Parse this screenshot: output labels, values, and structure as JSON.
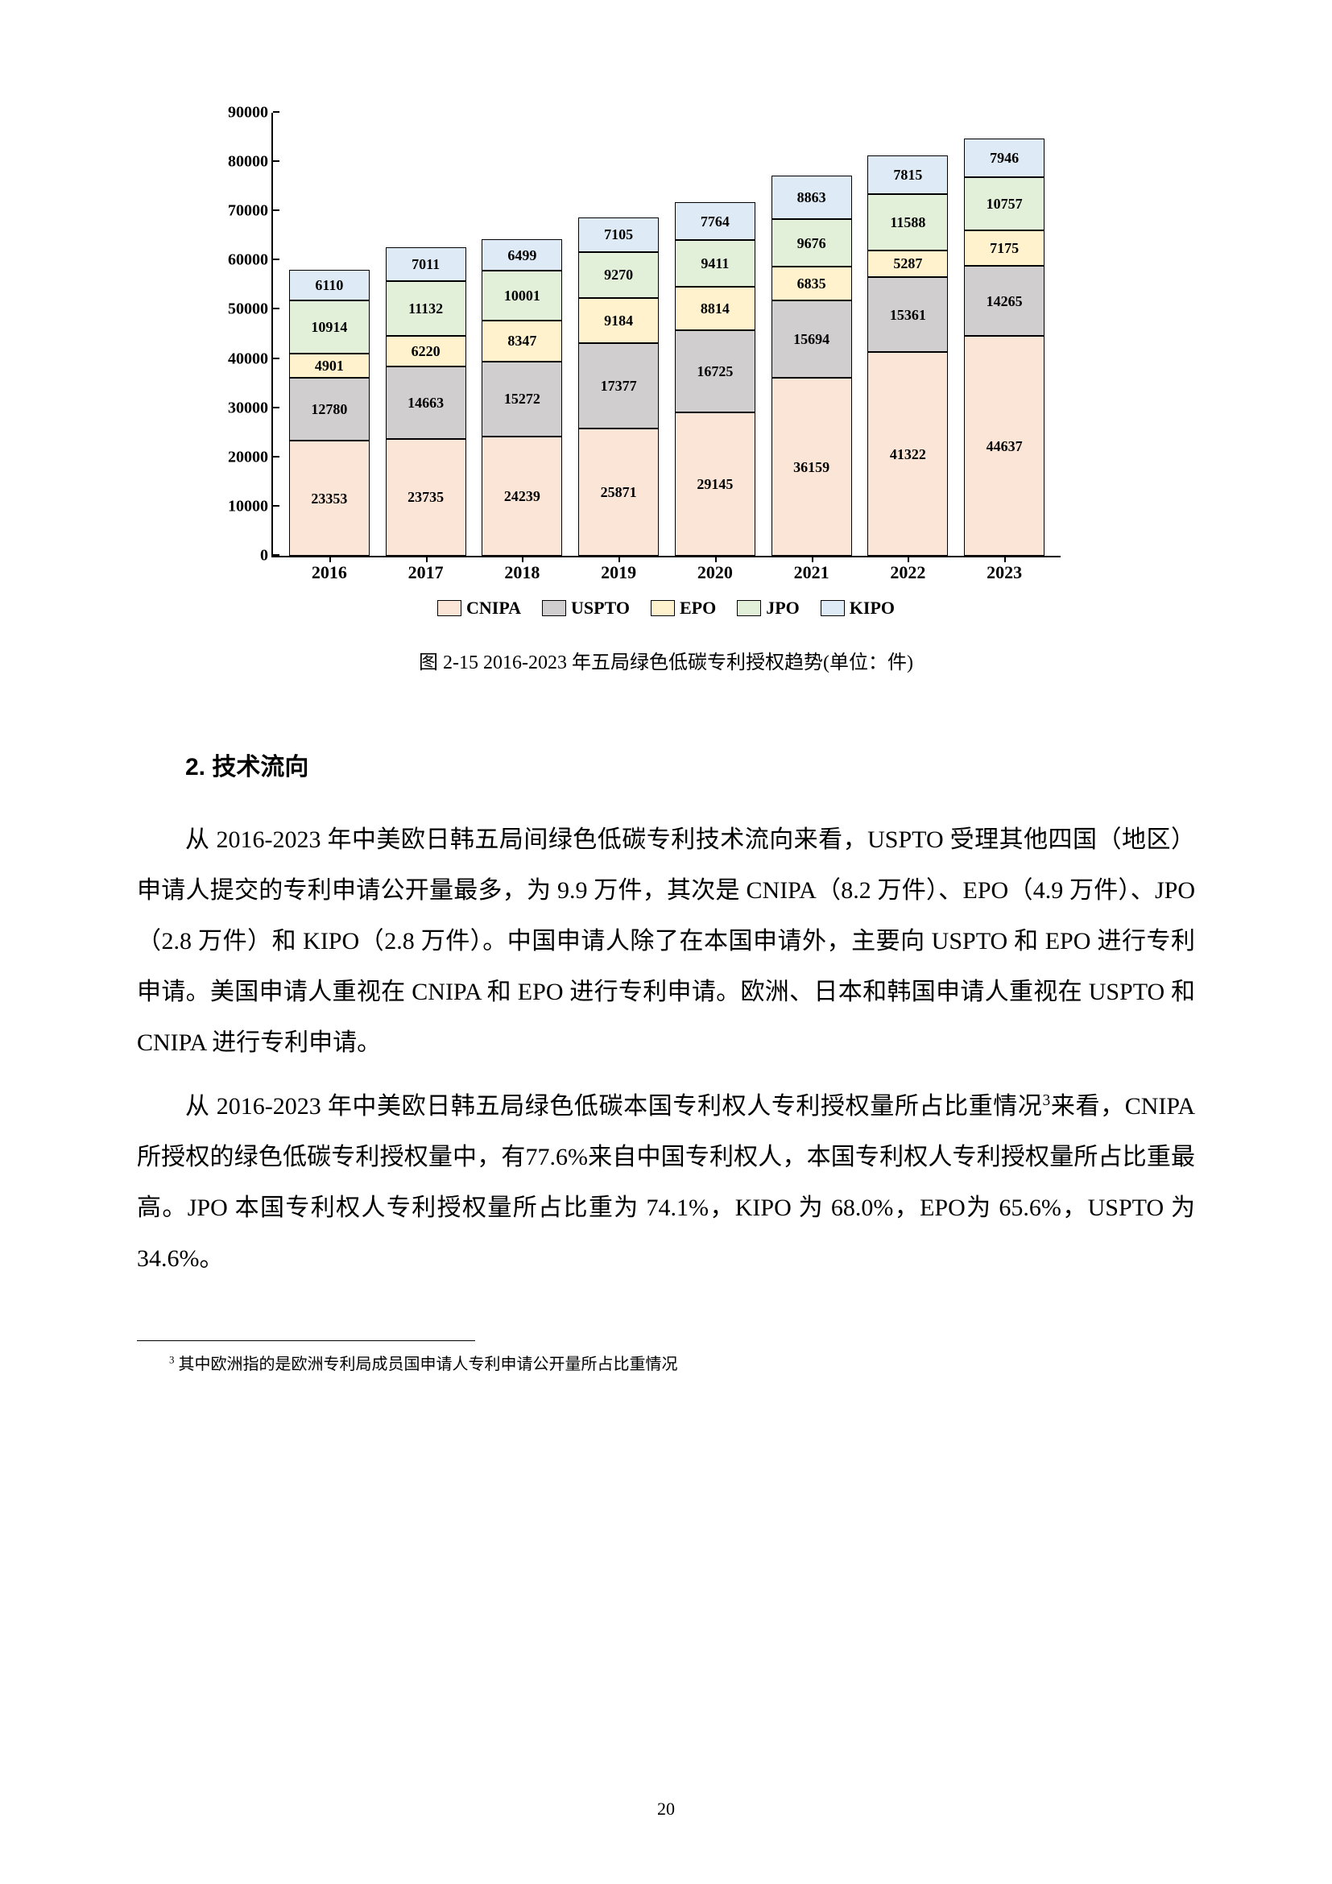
{
  "chart": {
    "type": "stacked-bar",
    "ylim": [
      0,
      90000
    ],
    "ytick_step": 10000,
    "background_color": "#ffffff",
    "axis_color": "#000000",
    "label_fontsize": 20,
    "categories": [
      "2016",
      "2017",
      "2018",
      "2019",
      "2020",
      "2021",
      "2022",
      "2023"
    ],
    "series": [
      {
        "key": "CNIPA",
        "label": "CNIPA",
        "color": "#fbe5d6"
      },
      {
        "key": "USPTO",
        "label": "USPTO",
        "color": "#d0cece"
      },
      {
        "key": "EPO",
        "label": "EPO",
        "color": "#fff2cc"
      },
      {
        "key": "JPO",
        "label": "JPO",
        "color": "#e2f0d9"
      },
      {
        "key": "KIPO",
        "label": "KIPO",
        "color": "#deebf7"
      }
    ],
    "values": {
      "2016": {
        "CNIPA": 23353,
        "USPTO": 12780,
        "EPO": 4901,
        "JPO": 10914,
        "KIPO": 6110
      },
      "2017": {
        "CNIPA": 23735,
        "USPTO": 14663,
        "EPO": 6220,
        "JPO": 11132,
        "KIPO": 7011
      },
      "2018": {
        "CNIPA": 24239,
        "USPTO": 15272,
        "EPO": 8347,
        "JPO": 10001,
        "KIPO": 6499
      },
      "2019": {
        "CNIPA": 25871,
        "USPTO": 17377,
        "EPO": 9184,
        "JPO": 9270,
        "KIPO": 7105
      },
      "2020": {
        "CNIPA": 29145,
        "USPTO": 16725,
        "EPO": 8814,
        "JPO": 9411,
        "KIPO": 7764
      },
      "2021": {
        "CNIPA": 36159,
        "USPTO": 15694,
        "EPO": 6835,
        "JPO": 9676,
        "KIPO": 8863
      },
      "2022": {
        "CNIPA": 41322,
        "USPTO": 15361,
        "EPO": 5287,
        "JPO": 11588,
        "KIPO": 7815
      },
      "2023": {
        "CNIPA": 44637,
        "USPTO": 14265,
        "EPO": 7175,
        "JPO": 10757,
        "KIPO": 7946
      }
    }
  },
  "caption": "图 2-15 2016-2023 年五局绿色低碳专利授权趋势(单位：件)",
  "section_title": "2. 技术流向",
  "para1": "从 2016-2023 年中美欧日韩五局间绿色低碳专利技术流向来看，USPTO 受理其他四国（地区）申请人提交的专利申请公开量最多，为 9.9 万件，其次是 CNIPA（8.2 万件）、EPO（4.9 万件）、JPO（2.8 万件）和 KIPO（2.8 万件）。中国申请人除了在本国申请外，主要向 USPTO 和 EPO 进行专利申请。美国申请人重视在 CNIPA 和 EPO 进行专利申请。欧洲、日本和韩国申请人重视在 USPTO 和 CNIPA 进行专利申请。",
  "para2_pre": "从 2016-2023 年中美欧日韩五局绿色低碳本国专利权人专利授权量所占比重情况",
  "para2_sup": "3",
  "para2_post": "来看，CNIPA 所授权的绿色低碳专利授权量中，有77.6%来自中国专利权人，本国专利权人专利授权量所占比重最高。JPO 本国专利权人专利授权量所占比重为 74.1%，KIPO 为 68.0%，EPO为 65.6%，USPTO 为 34.6%。",
  "footnote_marker": "3",
  "footnote_text": " 其中欧洲指的是欧洲专利局成员国申请人专利申请公开量所占比重情况",
  "page_number": "20"
}
